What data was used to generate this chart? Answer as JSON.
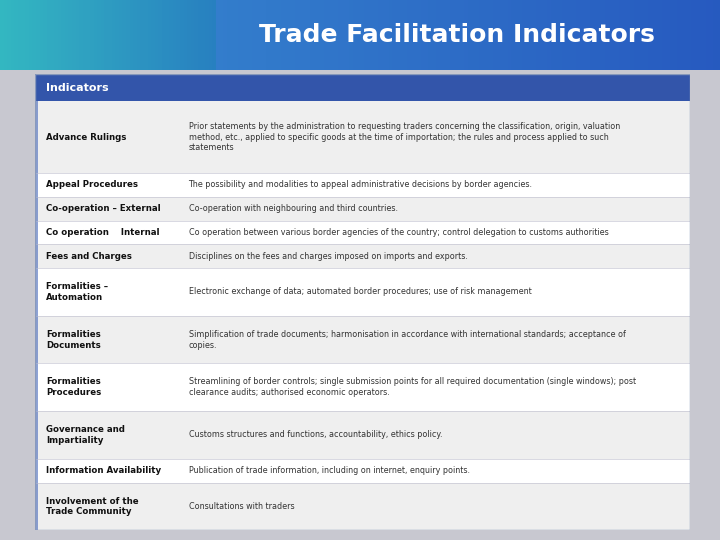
{
  "title": "Trade Facilitation Indicators",
  "title_color": "#ffffff",
  "title_fontsize": 18,
  "header_bg": "#3355aa",
  "header_text": "Indicators",
  "header_text_color": "#ffffff",
  "row_bg_odd": "#efefef",
  "row_bg_even": "#ffffff",
  "col1_color": "#111111",
  "col2_color": "#333333",
  "table_border": "#aaaacc",
  "bg_color": "#c8c8d0",
  "rows": [
    {
      "indicator": "Advance Rulings",
      "description": "Prior statements by the administration to requesting traders concerning the classification, origin, valuation\nmethod, etc., applied to specific goods at the time of importation; the rules and process applied to such\nstatements",
      "lines": 3
    },
    {
      "indicator": "Appeal Procedures",
      "description": "The possibility and modalities to appeal administrative decisions by border agencies.",
      "lines": 1
    },
    {
      "indicator": "Co-operation – External",
      "description": "Co-operation with neighbouring and third countries.",
      "lines": 1
    },
    {
      "indicator": "Co operation    Internal",
      "description": "Co operation between various border agencies of the country; control delegation to customs authorities",
      "lines": 1
    },
    {
      "indicator": "Fees and Charges",
      "description": "Disciplines on the fees and charges imposed on imports and exports.",
      "lines": 1
    },
    {
      "indicator": "Formalities –\nAutomation",
      "description": "Electronic exchange of data; automated border procedures; use of risk management",
      "lines": 2
    },
    {
      "indicator": "Formalities\nDocuments",
      "description": "Simplification of trade documents; harmonisation in accordance with international standards; acceptance of\ncopies.",
      "lines": 2
    },
    {
      "indicator": "Formalities\nProcedures",
      "description": "Streamlining of border controls; single submission points for all required documentation (single windows); post\nclearance audits; authorised economic operators.",
      "lines": 2
    },
    {
      "indicator": "Governance and\nImpartiality",
      "description": "Customs structures and functions, accountability, ethics policy.",
      "lines": 2
    },
    {
      "indicator": "Information Availability",
      "description": "Publication of trade information, including on internet, enquiry points.",
      "lines": 1
    },
    {
      "indicator": "Involvement of the\nTrade Community",
      "description": "Consultations with traders",
      "lines": 2
    }
  ]
}
